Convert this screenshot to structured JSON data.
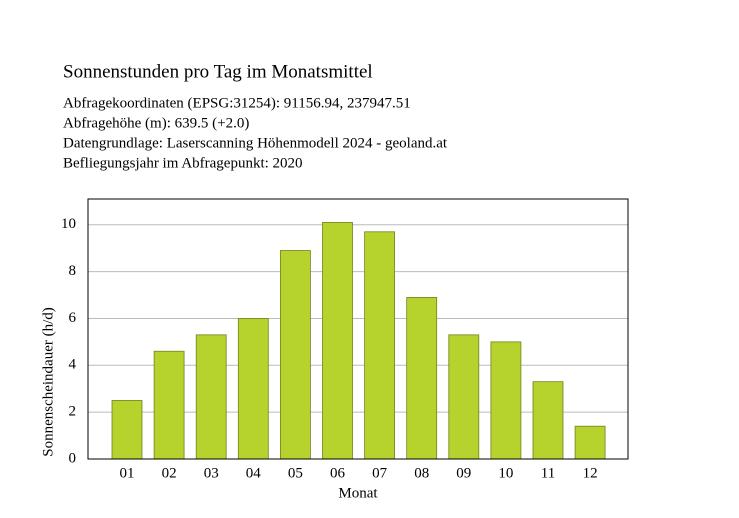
{
  "chart_data": {
    "type": "bar",
    "title": "Sonnenstunden pro Tag im Monatsmittel",
    "subtitle_lines": [
      "Abfragekoordinaten (EPSG:31254): 91156.94, 237947.51",
      "Abfragehöhe (m): 639.5 (+2.0)",
      "Datengrundlage: Laserscanning Höhenmodell 2024 - geoland.at",
      "Befliegungsjahr im Abfragepunkt: 2020"
    ],
    "x_label": "Monat",
    "y_label": "Sonnenscheindauer (h/d)",
    "categories": [
      "01",
      "02",
      "03",
      "04",
      "05",
      "06",
      "07",
      "08",
      "09",
      "10",
      "11",
      "12"
    ],
    "values": [
      2.5,
      4.6,
      5.3,
      6.0,
      8.9,
      10.1,
      9.7,
      6.9,
      5.3,
      5.0,
      3.3,
      1.4
    ],
    "color": "#b5d22d",
    "ylim": [
      0,
      11.1
    ],
    "yticks": [
      0,
      2,
      4,
      6,
      8,
      10
    ],
    "grid": true
  }
}
